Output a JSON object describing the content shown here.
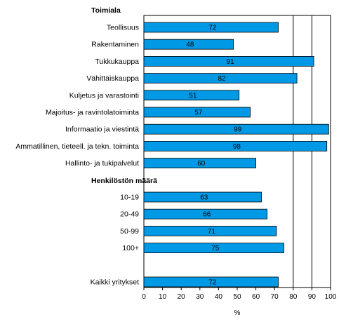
{
  "chart_data": {
    "type": "bar",
    "orientation": "horizontal",
    "title": "",
    "xlabel": "%",
    "ylabel": "",
    "xlim": [
      0,
      100
    ],
    "xticks": [
      "0",
      "10",
      "20",
      "30",
      "40",
      "50",
      "60",
      "70",
      "80",
      "90",
      "100"
    ],
    "bar_color": "#0099e6",
    "grid": "vertical lines at 80, 90, 100",
    "legend": "none",
    "groups": [
      {
        "title": "Toimiala",
        "categories": [
          "Teollisuus",
          "Rakentaminen",
          "Tukkukauppa",
          "Vähittäiskauppa",
          "Kuljetus ja varastointi",
          "Majoitus- ja ravintolatoiminta",
          "Informaatio ja viestintä",
          "Ammatillinen, tieteell. ja tekn. toiminta",
          "Hallinto- ja tukipalvelut"
        ],
        "values": [
          72,
          48,
          91,
          82,
          51,
          57,
          99,
          98,
          60
        ]
      },
      {
        "title": "Henkilöstön määrä",
        "categories": [
          "10-19",
          "20-49",
          "50-99",
          "100+"
        ],
        "values": [
          63,
          66,
          71,
          75
        ]
      },
      {
        "title": "",
        "categories": [
          "Kaikki yritykset"
        ],
        "values": [
          72
        ]
      }
    ]
  }
}
